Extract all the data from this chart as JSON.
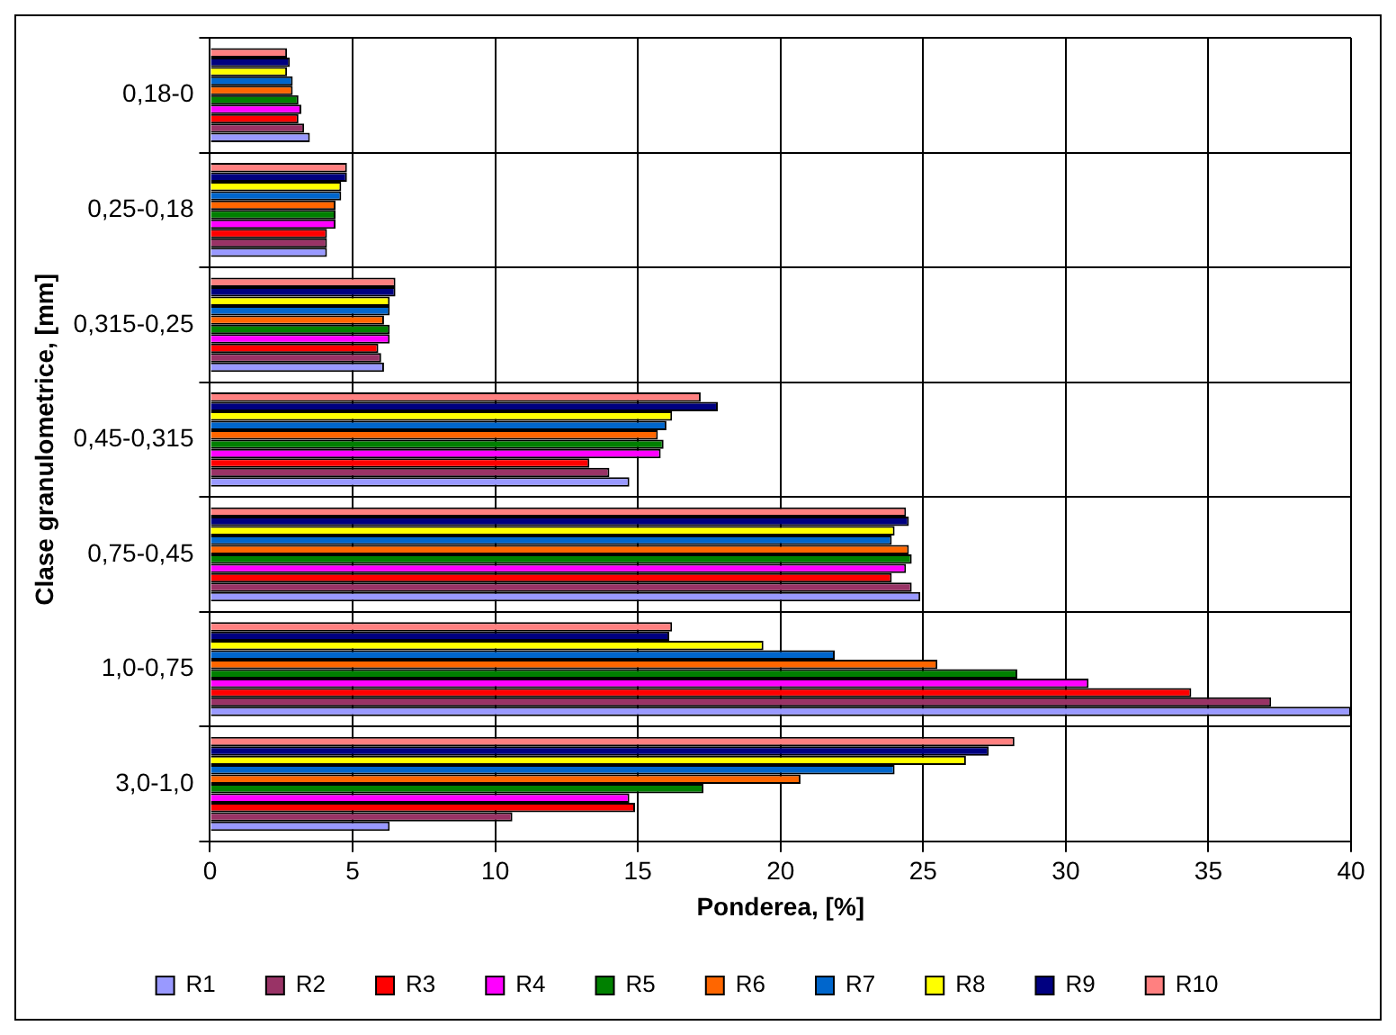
{
  "chart_data": {
    "type": "bar",
    "orientation": "horizontal",
    "xlabel": "Ponderea, [%]",
    "ylabel": "Clase granulometrice, [mm]",
    "categories": [
      "0,18-0",
      "0,25-0,18",
      "0,315-0,25",
      "0,45-0,315",
      "0,75-0,45",
      "1,0-0,75",
      "3,0-1,0"
    ],
    "xlim": [
      0,
      40
    ],
    "xticks": [
      0,
      5,
      10,
      15,
      20,
      25,
      30,
      35,
      40
    ],
    "grid": true,
    "legend": "bottom",
    "series": [
      {
        "name": "R1",
        "color": "#9999ff",
        "values": [
          3.5,
          4.1,
          6.1,
          14.7,
          24.9,
          40,
          6.3
        ]
      },
      {
        "name": "R2",
        "color": "#993366",
        "values": [
          3.3,
          4.1,
          6.0,
          14.0,
          24.6,
          37.2,
          10.6
        ]
      },
      {
        "name": "R3",
        "color": "#ff0000",
        "values": [
          3.1,
          4.1,
          5.9,
          13.3,
          23.9,
          34.4,
          14.9
        ]
      },
      {
        "name": "R4",
        "color": "#ff00ff",
        "values": [
          3.2,
          4.4,
          6.3,
          15.8,
          24.4,
          30.8,
          14.7
        ]
      },
      {
        "name": "R5",
        "color": "#008000",
        "values": [
          3.1,
          4.4,
          6.3,
          15.9,
          24.6,
          28.3,
          17.3
        ]
      },
      {
        "name": "R6",
        "color": "#ff6600",
        "values": [
          2.9,
          4.4,
          6.1,
          15.7,
          24.5,
          25.5,
          20.7
        ]
      },
      {
        "name": "R7",
        "color": "#0066cc",
        "values": [
          2.9,
          4.6,
          6.3,
          16.0,
          23.9,
          21.9,
          24.0
        ]
      },
      {
        "name": "R8",
        "color": "#ffff00",
        "values": [
          2.7,
          4.6,
          6.3,
          16.2,
          24.0,
          19.4,
          26.5
        ]
      },
      {
        "name": "R9",
        "color": "#000080",
        "values": [
          2.8,
          4.8,
          6.5,
          17.8,
          24.5,
          16.1,
          27.3
        ]
      },
      {
        "name": "R10",
        "color": "#ff8080",
        "values": [
          2.7,
          4.8,
          6.5,
          17.2,
          24.4,
          16.2,
          28.2
        ]
      }
    ]
  }
}
